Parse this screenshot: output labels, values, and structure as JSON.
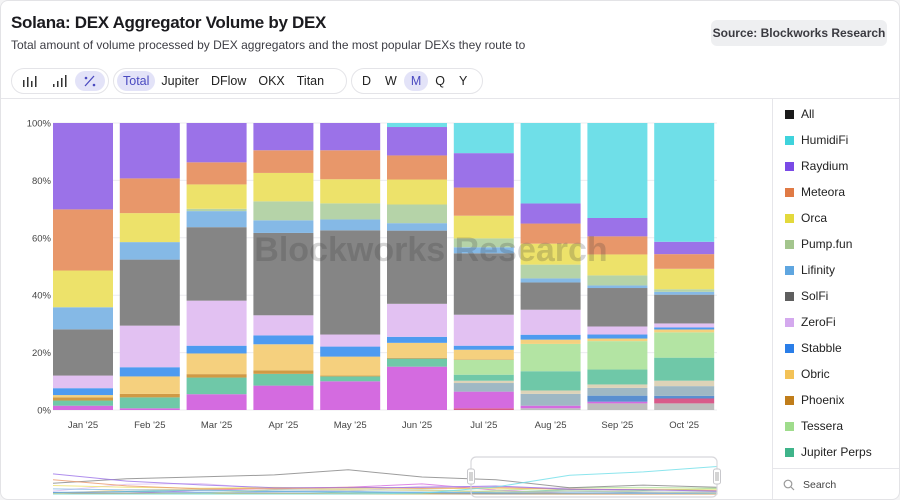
{
  "header": {
    "title": "Solana: DEX Aggregator Volume by DEX",
    "subtitle": "Total amount of volume processed by DEX aggregators and the most popular DEXs they route to",
    "source": "Source: Blockworks Research"
  },
  "toolbar": {
    "chart_types": [
      {
        "icon": "bar-chart-icon"
      },
      {
        "icon": "stacked-bar-icon"
      },
      {
        "icon": "percent-icon",
        "active": true
      }
    ],
    "aggregators": [
      {
        "label": "Total",
        "active": true
      },
      {
        "label": "Jupiter"
      },
      {
        "label": "DFlow"
      },
      {
        "label": "OKX"
      },
      {
        "label": "Titan"
      }
    ],
    "intervals": [
      {
        "label": "D"
      },
      {
        "label": "W"
      },
      {
        "label": "M",
        "active": true
      },
      {
        "label": "Q"
      },
      {
        "label": "Y"
      }
    ]
  },
  "legend": {
    "items": [
      {
        "label": "All",
        "color": "#1a1a1a"
      },
      {
        "label": "HumidiFi",
        "color": "#3fd3dc"
      },
      {
        "label": "Raydium",
        "color": "#7a4ae6"
      },
      {
        "label": "Meteora",
        "color": "#e07a45"
      },
      {
        "label": "Orca",
        "color": "#e3d93c"
      },
      {
        "label": "Pump.fun",
        "color": "#a3c58d"
      },
      {
        "label": "Lifinity",
        "color": "#5fa6e0"
      },
      {
        "label": "SolFi",
        "color": "#5f5f5f"
      },
      {
        "label": "ZeroFi",
        "color": "#d4a9ee"
      },
      {
        "label": "Stabble",
        "color": "#2a7ee8"
      },
      {
        "label": "Obric",
        "color": "#f3c257"
      },
      {
        "label": "Phoenix",
        "color": "#c07d1a"
      },
      {
        "label": "Tessera",
        "color": "#9fdc8c"
      },
      {
        "label": "Jupiter Perps",
        "color": "#3fb48a"
      }
    ],
    "search_placeholder": "Search"
  },
  "watermark": "Blockworks Research",
  "chart_data": {
    "type": "bar",
    "stacked": "percent",
    "title": "Solana: DEX Aggregator Volume by DEX",
    "xlabel": "",
    "ylabel": "",
    "ylim": [
      0,
      100
    ],
    "yticks": [
      "0%",
      "20%",
      "40%",
      "60%",
      "80%",
      "100%"
    ],
    "grid": true,
    "legend_position": "right",
    "categories": [
      "Jan '25",
      "Feb '25",
      "Mar '25",
      "Apr '25",
      "May '25",
      "Jun '25",
      "Jul '25",
      "Aug '25",
      "Sep '25",
      "Oct '25"
    ],
    "series": [
      {
        "name": "",
        "color": "#bdbdbd",
        "values": [
          0,
          0,
          0,
          0,
          0,
          0,
          0,
          0.6,
          2.3,
          2.3
        ]
      },
      {
        "name": "",
        "color": "#d85a8a",
        "values": [
          0,
          0,
          0,
          0,
          0,
          0,
          0.6,
          0,
          0,
          1.7
        ]
      },
      {
        "name": "",
        "color": "#d46be0",
        "values": [
          1.5,
          0.6,
          5.5,
          8.5,
          10.0,
          15.1,
          5.8,
          0.9,
          0.6,
          0
        ]
      },
      {
        "name": "",
        "color": "#5a8fd0",
        "values": [
          0,
          0,
          0,
          0,
          0,
          0,
          0,
          0,
          2.1,
          0.9
        ]
      },
      {
        "name": "",
        "color": "#9fb8c4",
        "values": [
          0,
          0,
          0,
          0,
          0,
          0,
          3.0,
          4.1,
          2.7,
          3.4
        ]
      },
      {
        "name": "",
        "color": "#ddd3b8",
        "values": [
          0,
          0,
          0,
          0,
          0,
          0,
          0.8,
          1.2,
          1.2,
          1.9
        ]
      },
      {
        "name": "Jupiter Perps",
        "color": "#6fc8a8",
        "values": [
          1.8,
          3.8,
          5.8,
          4.1,
          1.7,
          2.8,
          2.1,
          6.7,
          5.2,
          8.0
        ]
      },
      {
        "name": "Tessera",
        "color": "#b3e4a3",
        "values": [
          0,
          0,
          0,
          0,
          0,
          0,
          5.2,
          9.5,
          9.9,
          8.8
        ]
      },
      {
        "name": "Phoenix",
        "color": "#d09a45",
        "values": [
          1.1,
          1.2,
          1.2,
          1.2,
          0.3,
          0.3,
          0.2,
          0,
          0,
          0
        ]
      },
      {
        "name": "Obric",
        "color": "#f5d07e",
        "values": [
          0.8,
          6.1,
          7.2,
          9.1,
          6.6,
          5.2,
          3.3,
          1.5,
          0.9,
          1.0
        ]
      },
      {
        "name": "Stabble",
        "color": "#4e9bf0",
        "values": [
          2.4,
          3.2,
          2.7,
          3.1,
          3.5,
          2.1,
          1.4,
          1.7,
          1.4,
          0.7
        ]
      },
      {
        "name": "ZeroFi",
        "color": "#e2c1f2",
        "values": [
          4.4,
          14.5,
          15.7,
          7.0,
          4.2,
          11.5,
          10.8,
          8.7,
          2.8,
          1.4
        ]
      },
      {
        "name": "SolFi",
        "color": "#858585",
        "values": [
          16.1,
          23.0,
          25.6,
          28.7,
          36.3,
          25.5,
          21.4,
          9.5,
          13.4,
          10.0
        ]
      },
      {
        "name": "Lifinity",
        "color": "#85b9e6",
        "values": [
          7.7,
          6.1,
          5.6,
          4.4,
          3.8,
          2.6,
          2.1,
          1.4,
          0.9,
          1.0
        ]
      },
      {
        "name": "Pump.fun",
        "color": "#b5d3a8",
        "values": [
          0,
          0,
          0.8,
          6.6,
          5.6,
          6.5,
          3.1,
          4.8,
          3.5,
          0.9
        ]
      },
      {
        "name": "Orca",
        "color": "#ede26a",
        "values": [
          12.8,
          10.1,
          8.5,
          9.9,
          8.4,
          8.7,
          7.9,
          7.3,
          7.3,
          7.1
        ]
      },
      {
        "name": "Meteora",
        "color": "#e8976a",
        "values": [
          21.3,
          12.1,
          7.7,
          7.9,
          10.1,
          8.4,
          9.8,
          7.0,
          6.3,
          5.1
        ]
      },
      {
        "name": "Raydium",
        "color": "#9b72e8",
        "values": [
          30.1,
          19.3,
          13.7,
          9.5,
          9.5,
          9.9,
          12.0,
          7.0,
          6.4,
          4.3
        ]
      },
      {
        "name": "HumidiFi",
        "color": "#6fdfe8",
        "values": [
          0,
          0,
          0,
          0,
          0,
          1.4,
          10.5,
          28.0,
          33.1,
          41.3
        ]
      }
    ]
  }
}
